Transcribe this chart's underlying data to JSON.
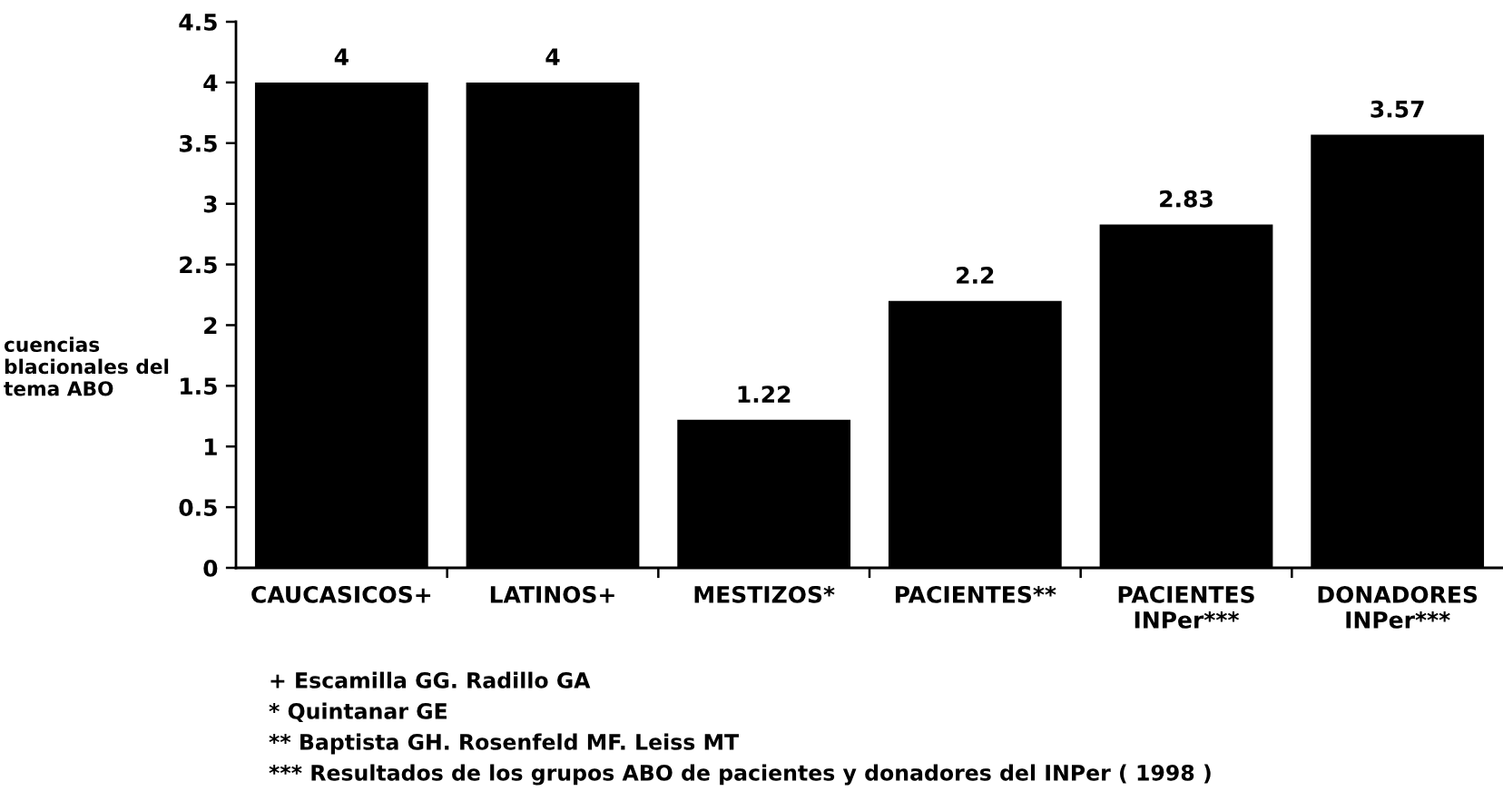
{
  "chart_data": {
    "type": "bar",
    "categories": [
      "CAUCASICOS+",
      "LATINOS+",
      "MESTIZOS*",
      "PACIENTES**",
      "PACIENTES\nINPer***",
      "DONADORES\nINPer***"
    ],
    "values": [
      4,
      4,
      1.22,
      2.2,
      2.83,
      3.57
    ],
    "color": "#000000",
    "data_labels": true,
    "ylabel": "cuencias\nblacionales del\ntema ABO",
    "ylim": [
      0,
      4.5
    ],
    "yticks": [
      0,
      0.5,
      1,
      1.5,
      2,
      2.5,
      3,
      3.5,
      4,
      4.5
    ],
    "annotations": [
      "+ Escamilla GG. Radillo GA",
      "* Quintanar GE",
      "** Baptista GH. Rosenfeld MF. Leiss MT",
      "*** Resultados de los grupos ABO de pacientes y donadores del INPer ( 1998 )"
    ]
  }
}
